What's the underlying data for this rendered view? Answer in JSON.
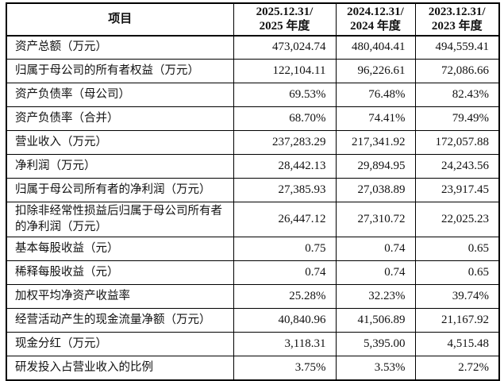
{
  "page": {
    "background": "#ffffff",
    "border_color": "#000000",
    "text_color": "#111111"
  },
  "table": {
    "header": {
      "item_label": "项目",
      "columns": [
        {
          "line1": "2025.12.31/",
          "line2": "2025 年度"
        },
        {
          "line1": "2024.12.31/",
          "line2": "2024 年度"
        },
        {
          "line1": "2023.12.31/",
          "line2": "2023 年度"
        }
      ]
    },
    "rows": [
      {
        "label": "资产总额（万元）",
        "values": [
          "473,024.74",
          "480,404.41",
          "494,559.41"
        ]
      },
      {
        "label": "归属于母公司的所有者权益（万元）",
        "values": [
          "122,104.11",
          "96,226.61",
          "72,086.66"
        ]
      },
      {
        "label": "资产负债率（母公司）",
        "values": [
          "69.53%",
          "76.48%",
          "82.43%"
        ]
      },
      {
        "label": "资产负债率（合并）",
        "values": [
          "68.70%",
          "74.41%",
          "79.49%"
        ]
      },
      {
        "label": "营业收入（万元）",
        "values": [
          "237,283.29",
          "217,341.92",
          "172,057.88"
        ]
      },
      {
        "label": "净利润（万元）",
        "values": [
          "28,442.13",
          "29,894.95",
          "24,243.56"
        ]
      },
      {
        "label": "归属于母公司所有者的净利润（万元）",
        "values": [
          "27,385.93",
          "27,038.89",
          "23,917.45"
        ]
      },
      {
        "label": "扣除非经常性损益后归属于母公司所有者的净利润（万元）",
        "values": [
          "26,447.12",
          "27,310.72",
          "22,025.23"
        ]
      },
      {
        "label": "基本每股收益（元）",
        "values": [
          "0.75",
          "0.74",
          "0.65"
        ]
      },
      {
        "label": "稀释每股收益（元）",
        "values": [
          "0.74",
          "0.74",
          "0.65"
        ]
      },
      {
        "label": "加权平均净资产收益率",
        "values": [
          "25.28%",
          "32.23%",
          "39.74%"
        ]
      },
      {
        "label": "经营活动产生的现金流量净额（万元）",
        "values": [
          "40,840.96",
          "41,506.89",
          "21,167.92"
        ]
      },
      {
        "label": "现金分红（万元）",
        "values": [
          "3,118.31",
          "5,395.00",
          "4,515.48"
        ]
      },
      {
        "label": "研发投入占营业收入的比例",
        "values": [
          "3.75%",
          "3.53%",
          "2.72%"
        ]
      }
    ]
  }
}
